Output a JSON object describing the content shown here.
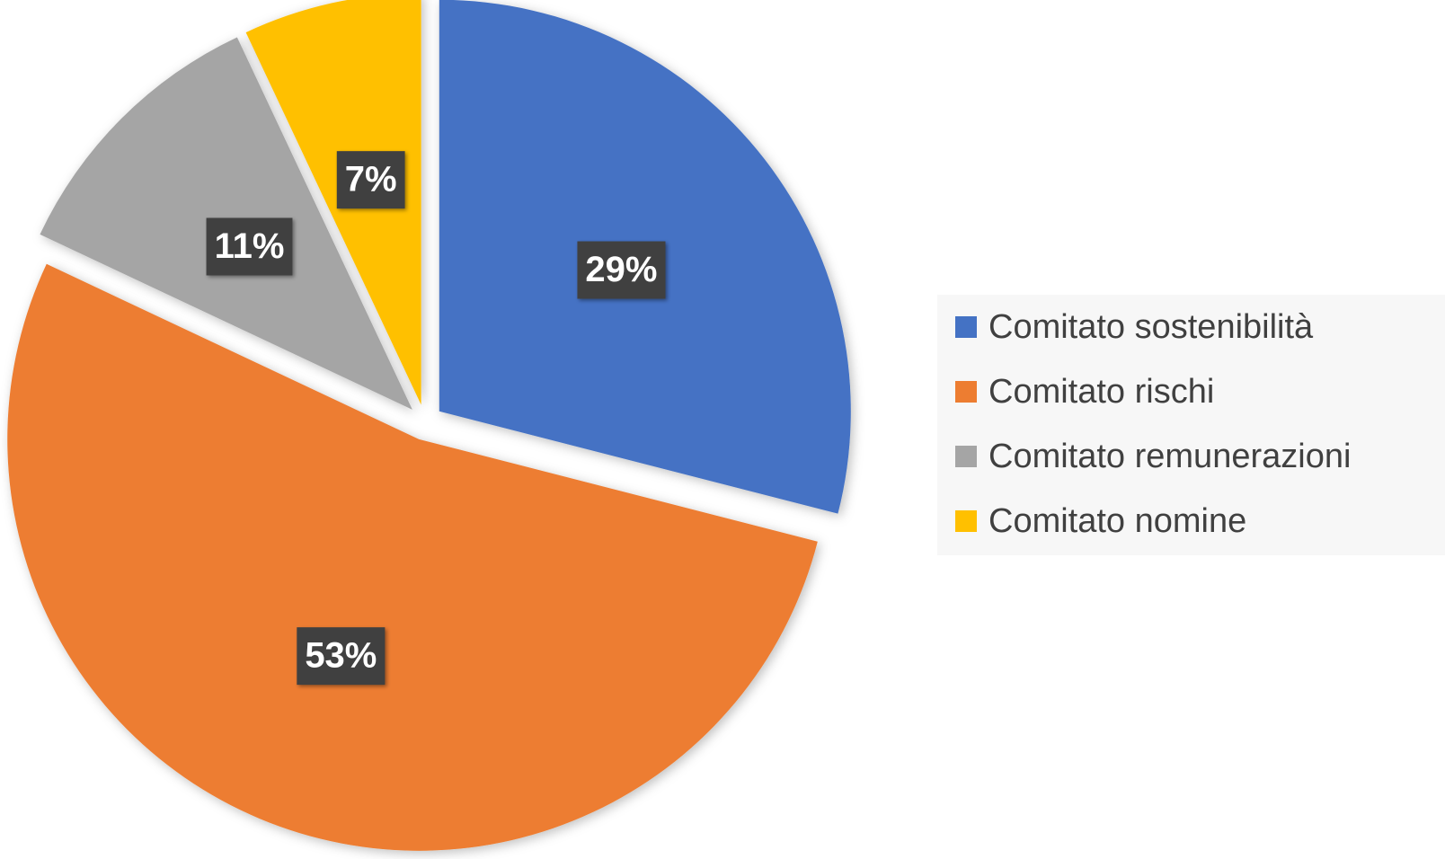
{
  "chart_data": {
    "type": "pie",
    "categories": [
      "Comitato sostenibilità",
      "Comitato rischi",
      "Comitato remunerazioni",
      "Comitato nomine"
    ],
    "values": [
      29,
      53,
      11,
      7
    ],
    "value_labels": [
      "29%",
      "53%",
      "11%",
      "7%"
    ],
    "colors": [
      "#4472c4",
      "#ed7d31",
      "#a5a5a5",
      "#ffc000"
    ],
    "legend": "right"
  }
}
